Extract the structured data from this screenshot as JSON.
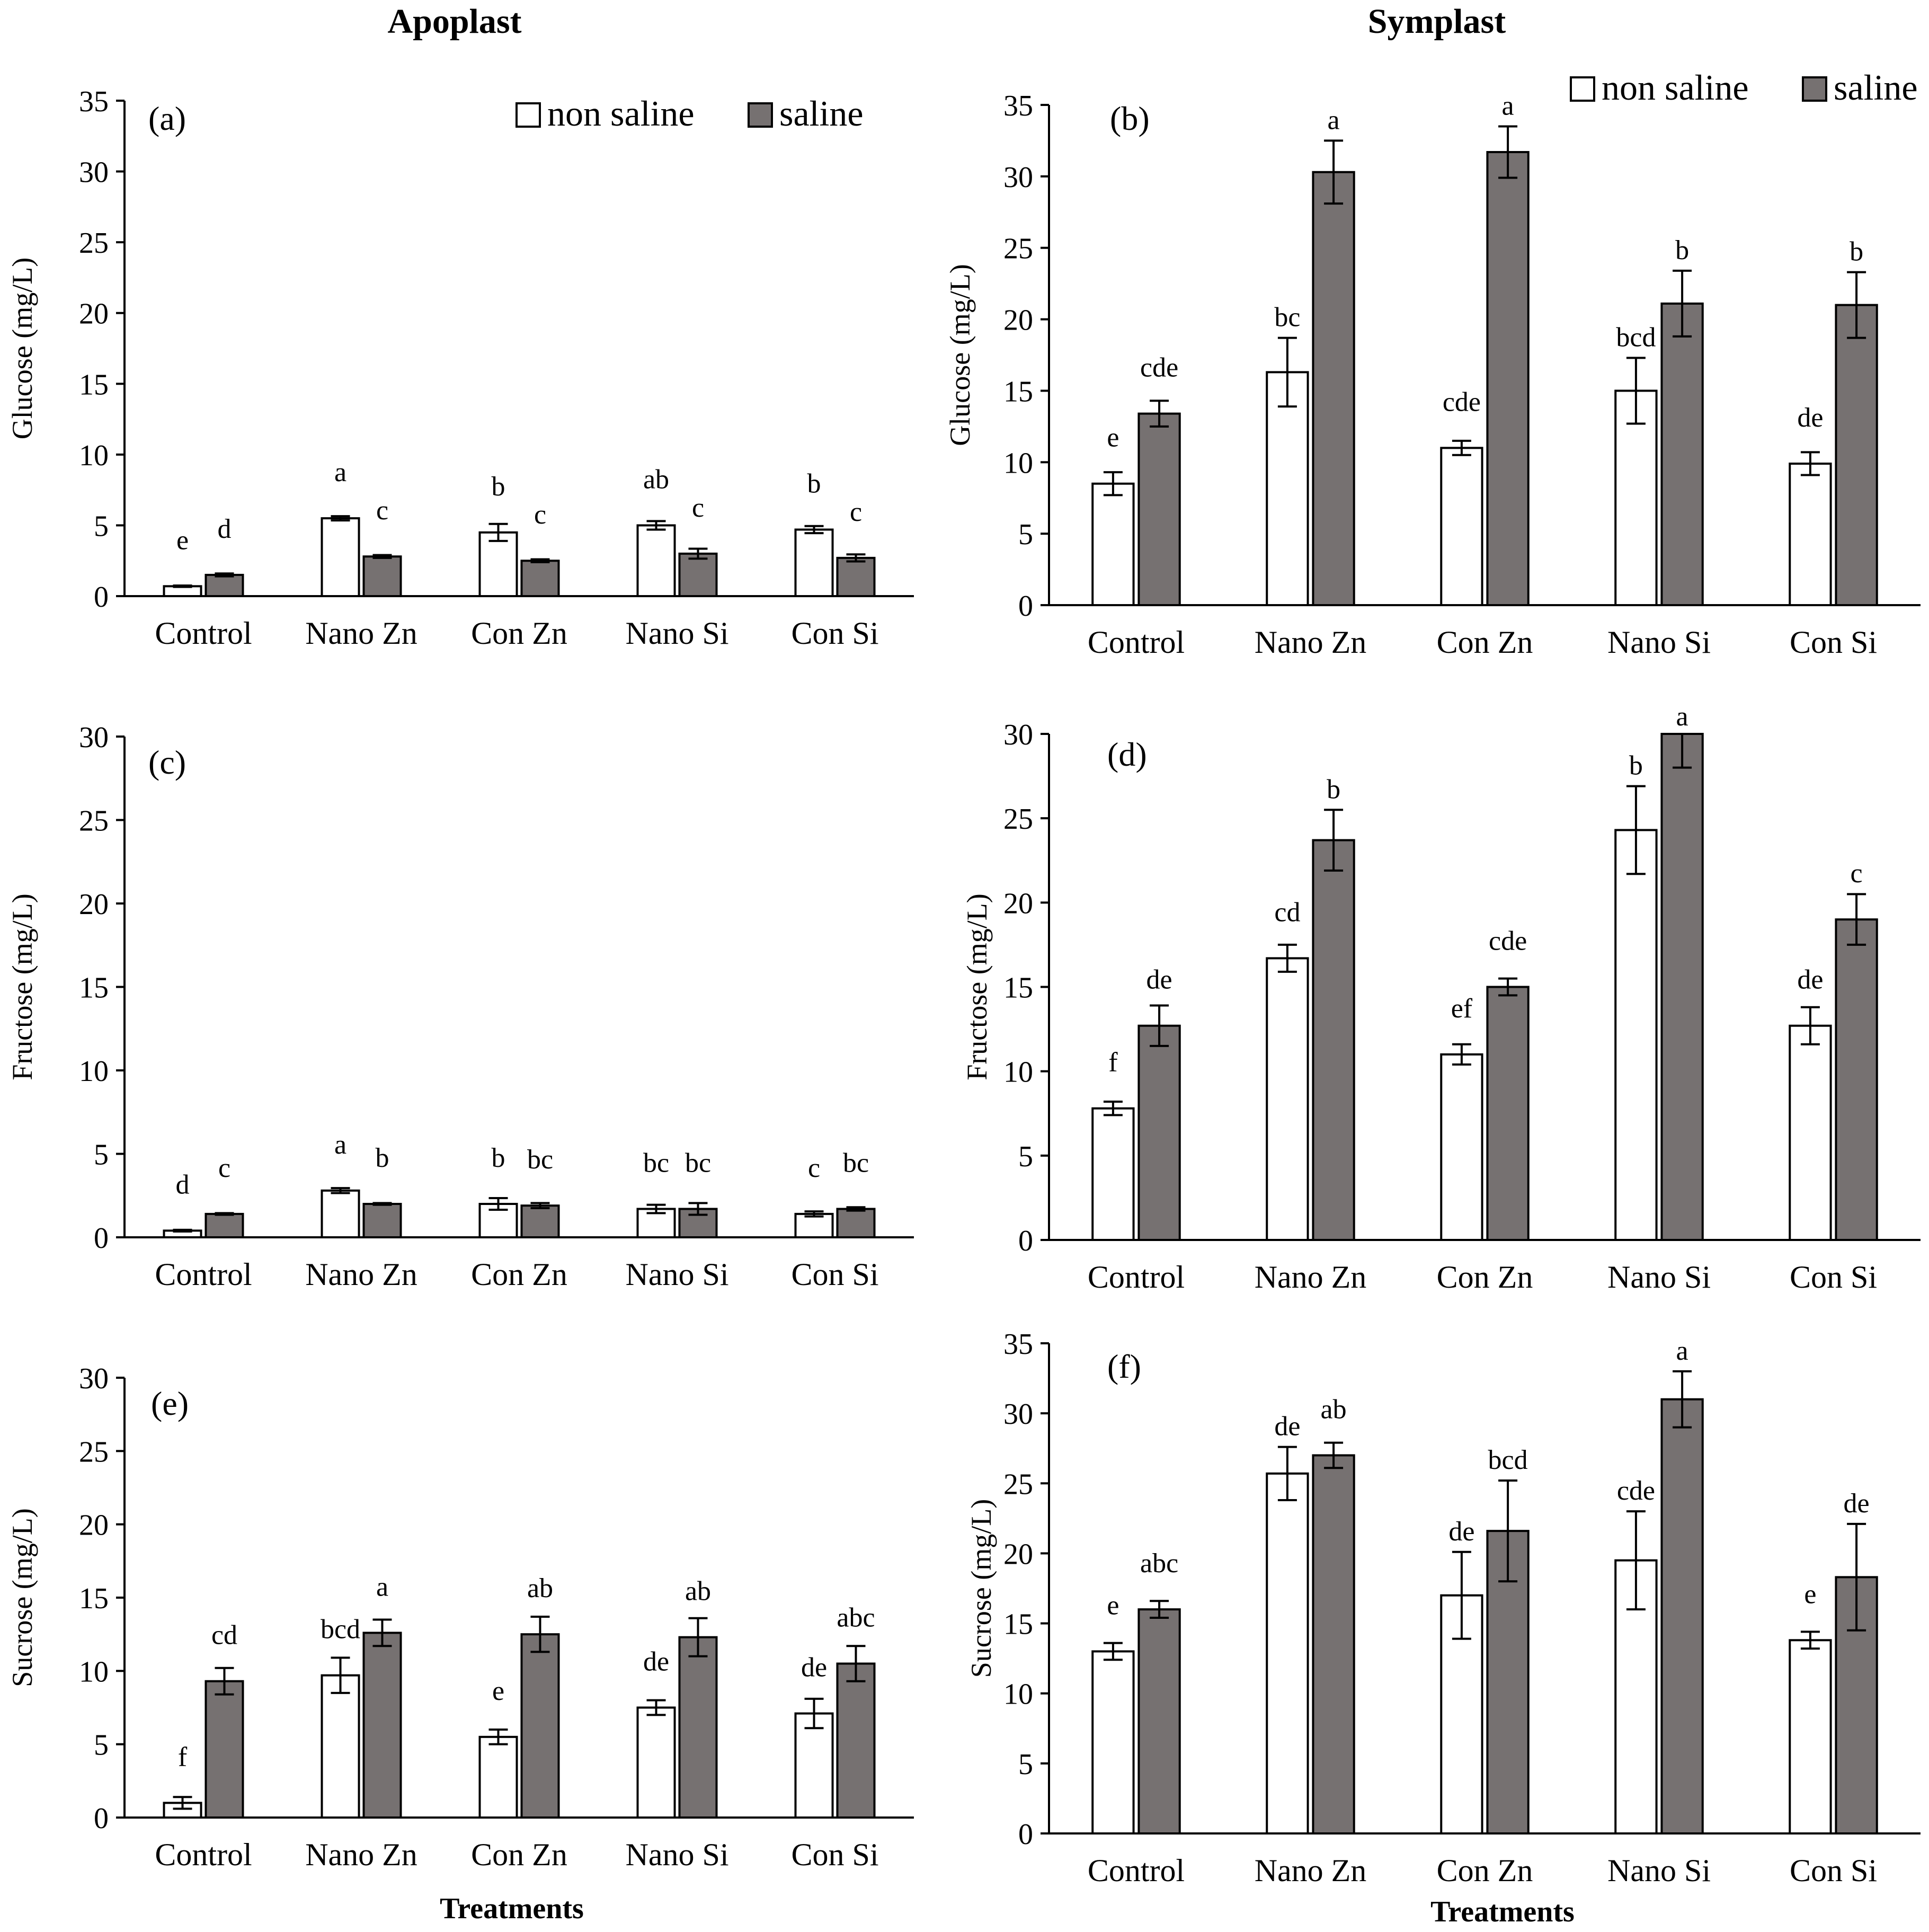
{
  "figure": {
    "col_titles": {
      "apoplast": "Apoplast",
      "symplast": "Symplast"
    },
    "x_title": "Treatments",
    "legend": [
      "non saline",
      "saline"
    ],
    "colors": {
      "non_saline": "#ffffff",
      "saline": "#767171",
      "axis": "#000000"
    }
  },
  "chart_data": [
    {
      "id": "a",
      "type": "bar",
      "panel_label": "(a)",
      "ylabel": "Glucose (mg/L)",
      "categories": [
        "Control",
        "Nano Zn",
        "Con Zn",
        "Nano Si",
        "Con Si"
      ],
      "ylim": [
        0,
        35
      ],
      "yticks": [
        0,
        5,
        10,
        15,
        20,
        25,
        30,
        35
      ],
      "legend_shown": true,
      "series": [
        {
          "name": "non saline",
          "values": [
            0.7,
            5.5,
            4.5,
            5.0,
            4.7
          ],
          "errors": [
            0.05,
            0.15,
            0.6,
            0.3,
            0.25
          ],
          "letters": [
            "e",
            "a",
            "b",
            "ab",
            "b"
          ]
        },
        {
          "name": "saline",
          "values": [
            1.5,
            2.8,
            2.5,
            3.0,
            2.7
          ],
          "errors": [
            0.1,
            0.1,
            0.1,
            0.35,
            0.25
          ],
          "letters": [
            "d",
            "c",
            "c",
            "c",
            "c"
          ]
        }
      ]
    },
    {
      "id": "b",
      "type": "bar",
      "panel_label": "(b)",
      "ylabel": "Glucose (mg/L)",
      "categories": [
        "Control",
        "Nano Zn",
        "Con Zn",
        "Nano Si",
        "Con Si"
      ],
      "ylim": [
        0,
        35
      ],
      "yticks": [
        0,
        5,
        10,
        15,
        20,
        25,
        30,
        35
      ],
      "legend_shown": true,
      "series": [
        {
          "name": "non saline",
          "values": [
            8.5,
            16.3,
            11.0,
            15.0,
            9.9
          ],
          "errors": [
            0.8,
            2.4,
            0.5,
            2.3,
            0.8
          ],
          "letters": [
            "e",
            "bc",
            "cde",
            "bcd",
            "de"
          ]
        },
        {
          "name": "saline",
          "values": [
            13.4,
            30.3,
            31.7,
            21.1,
            21.0
          ],
          "errors": [
            0.9,
            2.2,
            1.8,
            2.3,
            2.3
          ],
          "letters": [
            "cde",
            "a",
            "a",
            "b",
            "b"
          ]
        }
      ]
    },
    {
      "id": "c",
      "type": "bar",
      "panel_label": "(c)",
      "ylabel": "Fructose (mg/L)",
      "categories": [
        "Control",
        "Nano Zn",
        "Con Zn",
        "Nano Si",
        "Con Si"
      ],
      "ylim": [
        0,
        30
      ],
      "yticks": [
        0,
        5,
        10,
        15,
        20,
        25,
        30
      ],
      "legend_shown": false,
      "series": [
        {
          "name": "non saline",
          "values": [
            0.4,
            2.8,
            2.0,
            1.7,
            1.4
          ],
          "errors": [
            0.05,
            0.15,
            0.35,
            0.25,
            0.15
          ],
          "letters": [
            "d",
            "a",
            "b",
            "bc",
            "c"
          ]
        },
        {
          "name": "saline",
          "values": [
            1.4,
            2.0,
            1.9,
            1.7,
            1.7
          ],
          "errors": [
            0.05,
            0.05,
            0.15,
            0.35,
            0.1
          ],
          "letters": [
            "c",
            "b",
            "bc",
            "bc",
            "bc"
          ]
        }
      ]
    },
    {
      "id": "d",
      "type": "bar",
      "panel_label": "(d)",
      "ylabel": "Fructose (mg/L)",
      "categories": [
        "Control",
        "Nano Zn",
        "Con Zn",
        "Nano Si",
        "Con Si"
      ],
      "ylim": [
        0,
        30
      ],
      "yticks": [
        0,
        5,
        10,
        15,
        20,
        25,
        30
      ],
      "legend_shown": false,
      "series": [
        {
          "name": "non saline",
          "values": [
            7.8,
            16.7,
            11.0,
            24.3,
            12.7
          ],
          "errors": [
            0.4,
            0.8,
            0.6,
            2.6,
            1.1
          ],
          "letters": [
            "f",
            "cd",
            "ef",
            "b",
            "de"
          ]
        },
        {
          "name": "saline",
          "values": [
            12.7,
            23.7,
            15.0,
            30.0,
            19.0
          ],
          "errors": [
            1.2,
            1.8,
            0.5,
            2.0,
            1.5
          ],
          "letters": [
            "de",
            "b",
            "cde",
            "a",
            "c"
          ]
        }
      ]
    },
    {
      "id": "e",
      "type": "bar",
      "panel_label": "(e)",
      "ylabel": "Sucrose (mg/L)",
      "categories": [
        "Control",
        "Nano Zn",
        "Con Zn",
        "Nano Si",
        "Con Si"
      ],
      "ylim": [
        0,
        30
      ],
      "yticks": [
        0,
        5,
        10,
        15,
        20,
        25,
        30
      ],
      "legend_shown": false,
      "series": [
        {
          "name": "non saline",
          "values": [
            1.0,
            9.7,
            5.5,
            7.5,
            7.1
          ],
          "errors": [
            0.4,
            1.2,
            0.5,
            0.5,
            1.0
          ],
          "letters": [
            "f",
            "bcd",
            "e",
            "de",
            "de"
          ]
        },
        {
          "name": "saline",
          "values": [
            9.3,
            12.6,
            12.5,
            12.3,
            10.5
          ],
          "errors": [
            0.9,
            0.9,
            1.2,
            1.3,
            1.2
          ],
          "letters": [
            "cd",
            "a",
            "ab",
            "ab",
            "abc"
          ]
        }
      ]
    },
    {
      "id": "f",
      "type": "bar",
      "panel_label": "(f)",
      "ylabel": "Sucrose (mg/L)",
      "categories": [
        "Control",
        "Nano Zn",
        "Con Zn",
        "Nano Si",
        "Con Si"
      ],
      "ylim": [
        0,
        35
      ],
      "yticks": [
        0,
        5,
        10,
        15,
        20,
        25,
        30,
        35
      ],
      "legend_shown": false,
      "series": [
        {
          "name": "non saline",
          "values": [
            13.0,
            25.7,
            17.0,
            19.5,
            13.8
          ],
          "errors": [
            0.6,
            1.9,
            3.1,
            3.5,
            0.6
          ],
          "letters": [
            "e",
            "de",
            "de",
            "cde",
            "e"
          ]
        },
        {
          "name": "saline",
          "values": [
            16.0,
            27.0,
            21.6,
            31.0,
            18.3
          ],
          "errors": [
            0.6,
            0.9,
            3.6,
            2.0,
            3.8
          ],
          "letters": [
            "abc",
            "ab",
            "bcd",
            "a",
            "de"
          ]
        }
      ]
    }
  ]
}
